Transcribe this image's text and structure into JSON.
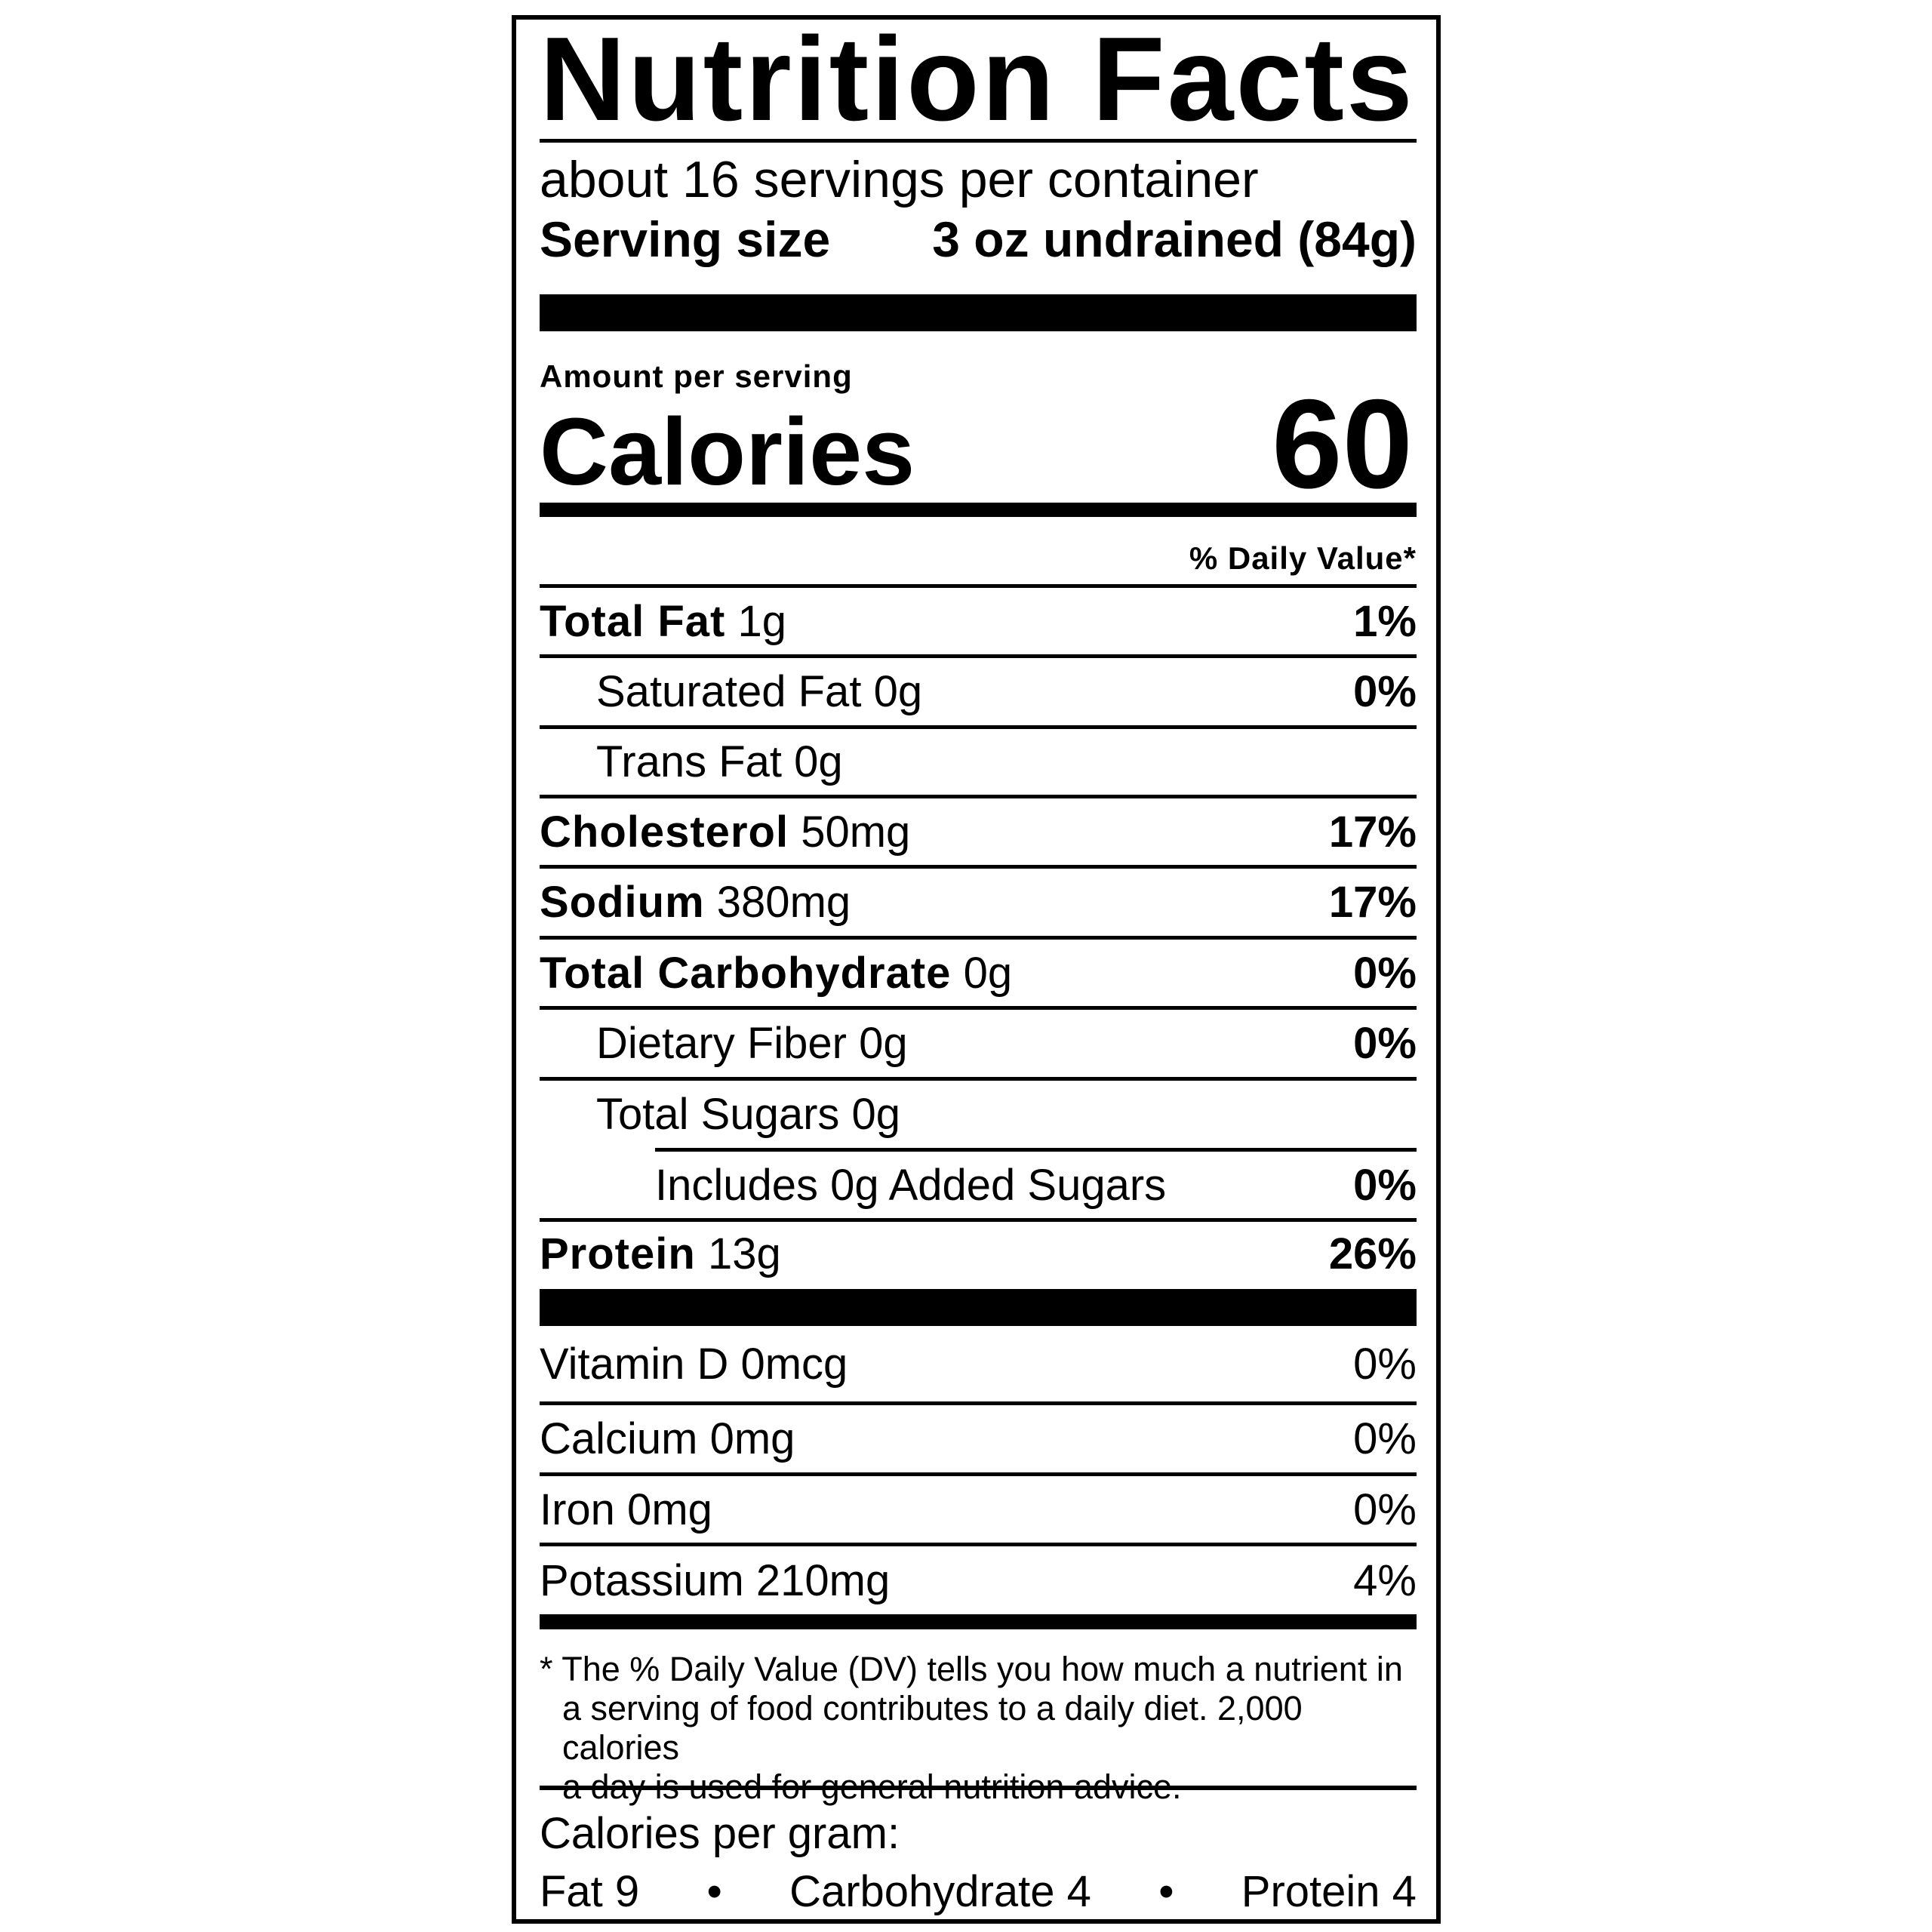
{
  "title": "Nutrition Facts",
  "servings_per_container": "about 16 servings per container",
  "serving_size": {
    "label": "Serving size",
    "value": "3 oz undrained (84g)"
  },
  "amount_per_serving": "Amount per serving",
  "calories": {
    "label": "Calories",
    "value": "60"
  },
  "daily_value_header": "% Daily Value*",
  "nutrients": [
    {
      "name": "Total Fat",
      "amount": "1g",
      "dv": "1%"
    },
    {
      "name": "Saturated Fat",
      "amount": "0g",
      "dv": "0%"
    },
    {
      "name": "Trans Fat",
      "amount": "0g",
      "dv": ""
    },
    {
      "name": "Cholesterol",
      "amount": "50mg",
      "dv": "17%"
    },
    {
      "name": "Sodium",
      "amount": "380mg",
      "dv": "17%"
    },
    {
      "name": "Total Carbohydrate",
      "amount": "0g",
      "dv": "0%"
    },
    {
      "name": "Dietary Fiber",
      "amount": "0g",
      "dv": "0%"
    },
    {
      "name": "Total Sugars",
      "amount": "0g",
      "dv": ""
    },
    {
      "name": "Includes 0g Added Sugars",
      "amount": "",
      "dv": "0%"
    },
    {
      "name": "Protein",
      "amount": "13g",
      "dv": "26%"
    }
  ],
  "vitamins": [
    {
      "name": "Vitamin D 0mcg",
      "dv": "0%"
    },
    {
      "name": "Calcium 0mg",
      "dv": "0%"
    },
    {
      "name": "Iron 0mg",
      "dv": "0%"
    },
    {
      "name": "Potassium 210mg",
      "dv": "4%"
    }
  ],
  "footnote": [
    "* The % Daily Value (DV) tells you how much a nutrient in",
    "a serving of food contributes to a daily diet. 2,000 calories",
    "a day is used for general nutrition advice."
  ],
  "calories_per_gram": {
    "label": "Calories per gram:",
    "fat": "Fat 9",
    "carbohydrate": "Carbohydrate 4",
    "protein": "Protein 4",
    "separator": "•"
  }
}
